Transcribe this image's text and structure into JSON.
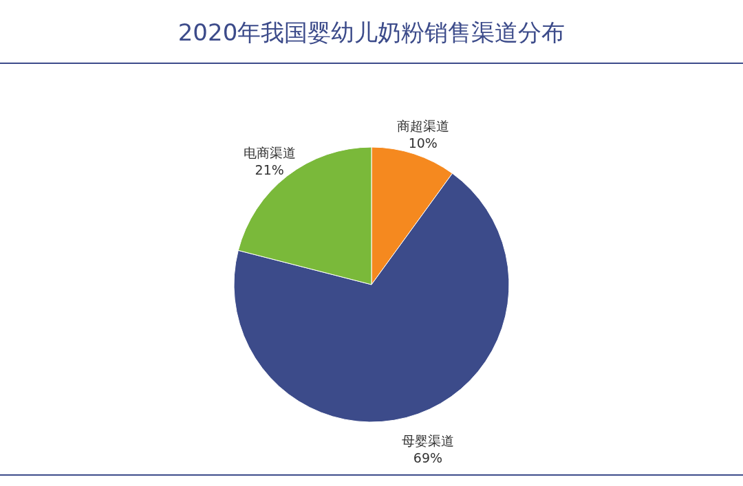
{
  "chart_data": {
    "type": "pie",
    "title": "2020年我国婴幼儿奶粉销售渠道分布",
    "categories": [
      "商超渠道",
      "母婴渠道",
      "电商渠道"
    ],
    "values": [
      10,
      69,
      21
    ],
    "value_labels": [
      "10%",
      "69%",
      "21%"
    ],
    "colors": [
      "#f5891f",
      "#3c4b8a",
      "#7ab93a"
    ],
    "legend": false
  }
}
